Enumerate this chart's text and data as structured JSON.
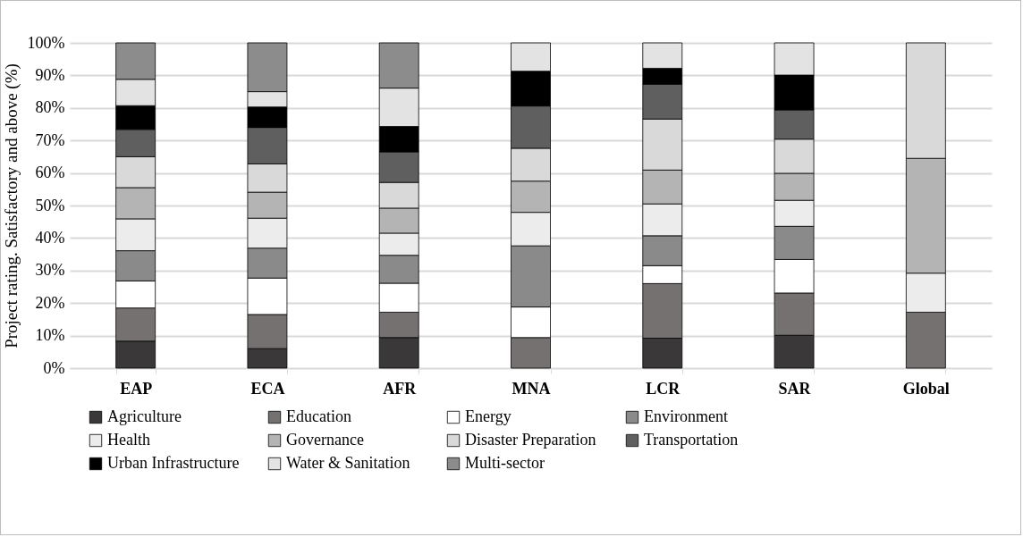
{
  "chart_data": {
    "type": "bar",
    "stacked": true,
    "ylabel": "Project rating. Satisfactory and above (%)",
    "categories": [
      "EAP",
      "ECA",
      "AFR",
      "MNA",
      "LCR",
      "SAR",
      "Global"
    ],
    "series": [
      {
        "name": "Agriculture",
        "color": "#3a3838",
        "values": [
          8.3,
          6.0,
          9.4,
          null,
          9.2,
          10.1,
          null
        ]
      },
      {
        "name": "Education",
        "color": "#767171",
        "values": [
          10.2,
          10.5,
          7.8,
          9.4,
          16.8,
          13.0,
          17.2
        ]
      },
      {
        "name": "Energy",
        "color": "#ffffff",
        "values": [
          8.3,
          11.2,
          8.9,
          9.4,
          5.5,
          10.3,
          null
        ]
      },
      {
        "name": "Environment",
        "color": "#8a8a8a",
        "values": [
          9.3,
          9.2,
          8.6,
          18.8,
          9.2,
          10.2,
          null
        ]
      },
      {
        "name": "Health",
        "color": "#ececec",
        "values": [
          9.8,
          9.2,
          6.8,
          10.3,
          9.8,
          8.0,
          12.0
        ]
      },
      {
        "name": "Governance",
        "color": "#b4b4b4",
        "values": [
          9.6,
          8.0,
          7.7,
          9.6,
          10.4,
          8.3,
          35.3
        ]
      },
      {
        "name": "Disaster Preparation",
        "color": "#d9d9d9",
        "values": [
          9.5,
          8.7,
          7.9,
          10.1,
          15.7,
          10.5,
          35.5
        ]
      },
      {
        "name": "Transportation",
        "color": "#5f5f5f",
        "values": [
          8.4,
          11.2,
          9.4,
          13.0,
          10.7,
          9.0,
          null
        ]
      },
      {
        "name": "Urban Infrastructure",
        "color": "#000000",
        "values": [
          7.3,
          6.3,
          7.8,
          10.7,
          4.9,
          10.7,
          null
        ]
      },
      {
        "name": "Water & Sanitation",
        "color": "#e3e3e3",
        "values": [
          8.1,
          4.7,
          11.8,
          8.7,
          7.8,
          9.9,
          null
        ]
      },
      {
        "name": "Multi-sector",
        "color": "#8c8c8c",
        "values": [
          11.2,
          15.0,
          13.9,
          null,
          null,
          null,
          null
        ]
      }
    ],
    "ylim": [
      0,
      100
    ],
    "yticks": [
      {
        "value": 0,
        "label": "0%"
      },
      {
        "value": 10,
        "label": "10%"
      },
      {
        "value": 20,
        "label": "20%"
      },
      {
        "value": 30,
        "label": "30%"
      },
      {
        "value": 40,
        "label": "40%"
      },
      {
        "value": 50,
        "label": "50%"
      },
      {
        "value": 60,
        "label": "60%"
      },
      {
        "value": 70,
        "label": "70%"
      },
      {
        "value": 80,
        "label": "80%"
      },
      {
        "value": 90,
        "label": "90%"
      },
      {
        "value": 100,
        "label": "100%"
      }
    ],
    "grid": "y",
    "legend": "bottom"
  }
}
